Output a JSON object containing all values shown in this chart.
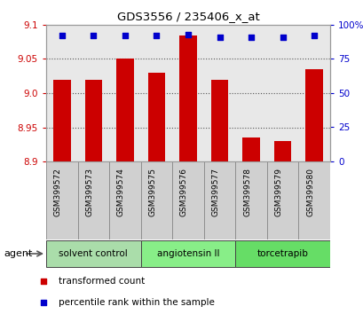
{
  "title": "GDS3556 / 235406_x_at",
  "samples": [
    "GSM399572",
    "GSM399573",
    "GSM399574",
    "GSM399575",
    "GSM399576",
    "GSM399577",
    "GSM399578",
    "GSM399579",
    "GSM399580"
  ],
  "transformed_counts": [
    9.02,
    9.02,
    9.05,
    9.03,
    9.085,
    9.02,
    8.935,
    8.93,
    9.035
  ],
  "percentile_ranks": [
    92,
    92,
    92,
    92,
    93,
    91,
    91,
    91,
    92
  ],
  "bar_color": "#cc0000",
  "dot_color": "#0000cc",
  "ylim_left": [
    8.9,
    9.1
  ],
  "ylim_right": [
    0,
    100
  ],
  "yticks_left": [
    8.9,
    8.95,
    9.0,
    9.05,
    9.1
  ],
  "yticks_right": [
    0,
    25,
    50,
    75,
    100
  ],
  "ytick_labels_right": [
    "0",
    "25",
    "50",
    "75",
    "100%"
  ],
  "groups": [
    {
      "label": "solvent control",
      "start": 0,
      "end": 3,
      "color": "#aaddaa"
    },
    {
      "label": "angiotensin II",
      "start": 3,
      "end": 6,
      "color": "#88ee88"
    },
    {
      "label": "torcetrapib",
      "start": 6,
      "end": 9,
      "color": "#66dd66"
    }
  ],
  "agent_label": "agent",
  "legend_items": [
    {
      "label": "transformed count",
      "color": "#cc0000"
    },
    {
      "label": "percentile rank within the sample",
      "color": "#0000cc"
    }
  ],
  "background_color": "#ffffff",
  "plot_bg_color": "#e8e8e8",
  "grid_color": "#555555",
  "tick_label_color_left": "#cc0000",
  "tick_label_color_right": "#0000cc",
  "bar_width": 0.55,
  "base_value": 8.9,
  "sample_box_color": "#d0d0d0",
  "sample_box_edge": "#888888"
}
